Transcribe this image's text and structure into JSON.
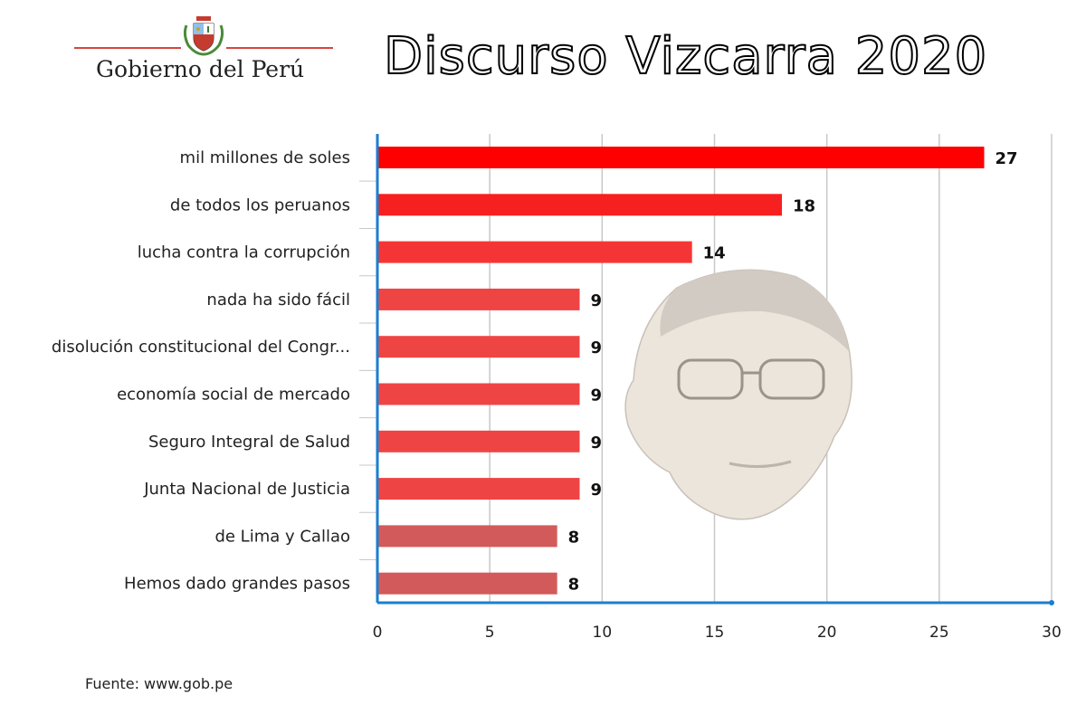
{
  "header": {
    "logo_text": "Gobierno del Perú",
    "title": "Discurso Vizcarra 2020"
  },
  "chart_data": {
    "type": "bar",
    "orientation": "horizontal",
    "categories": [
      "mil millones de soles",
      "de todos los peruanos",
      "lucha contra la corrupción",
      "nada ha sido fácil",
      "disolución constitucional del Congr...",
      "economía social de mercado",
      "Seguro Integral de Salud",
      "Junta Nacional de Justicia",
      "de Lima y Callao",
      "Hemos dado grandes pasos"
    ],
    "values": [
      27,
      18,
      14,
      9,
      9,
      9,
      9,
      9,
      8,
      8
    ],
    "bar_colors": [
      "#ff0000",
      "#f72020",
      "#f53535",
      "#ef4444",
      "#ef4444",
      "#ef4444",
      "#ef4444",
      "#ef4444",
      "#d35a5a",
      "#d35a5a"
    ],
    "xlim": [
      0,
      30
    ],
    "x_ticks": [
      "0",
      "5",
      "10",
      "15",
      "20",
      "25",
      "30"
    ],
    "grid": true,
    "axis_color": "#1a7fd0",
    "title": "",
    "xlabel": "",
    "ylabel": ""
  },
  "footer": {
    "source": "Fuente: www.gob.pe"
  },
  "decor": {
    "emblem": "peru-coat-of-arms-icon",
    "portrait": "portrait-image"
  }
}
